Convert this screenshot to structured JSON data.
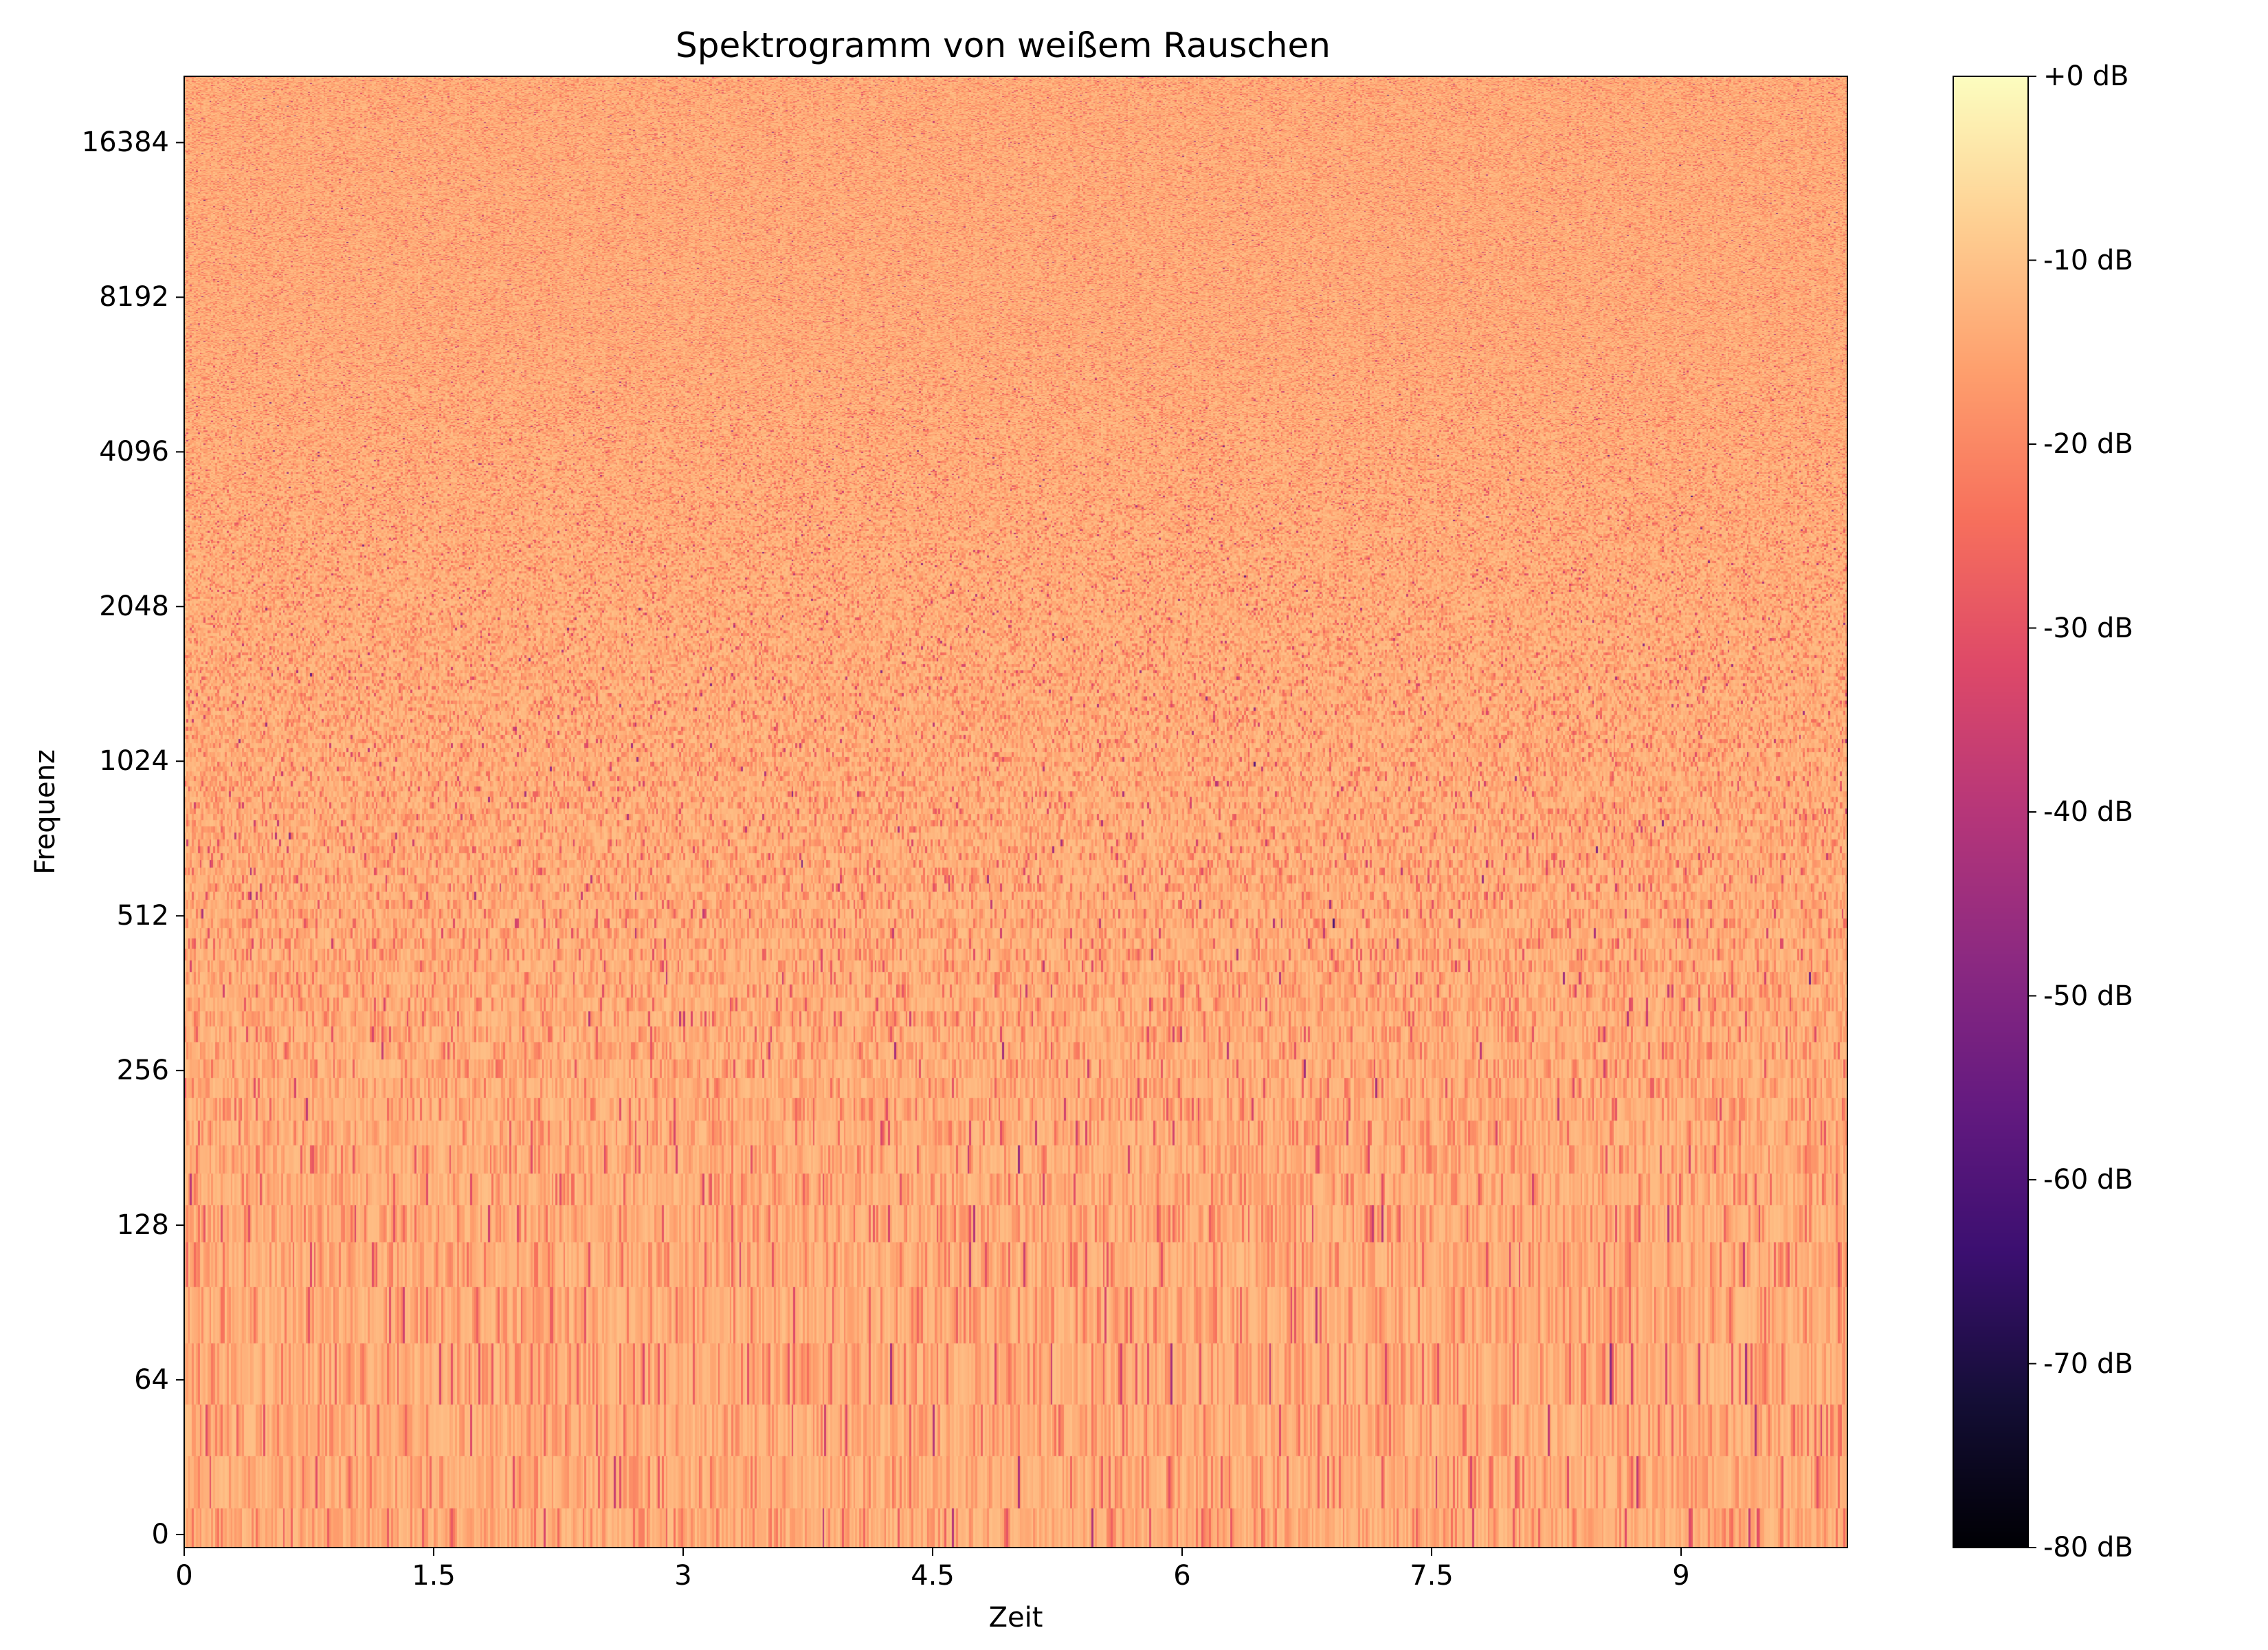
{
  "chart_data": {
    "type": "heatmap",
    "title": "Spektrogramm von weißem Rauschen",
    "xlabel": "Zeit",
    "ylabel": "Frequenz",
    "x_ticks": [
      "0",
      "1.5",
      "3",
      "4.5",
      "6",
      "7.5",
      "9"
    ],
    "x_tick_values": [
      0,
      1.5,
      3,
      4.5,
      6,
      7.5,
      9
    ],
    "xlim": [
      0,
      10
    ],
    "y_scale": "symlog (base 2)",
    "y_ticks": [
      "0",
      "64",
      "128",
      "256",
      "512",
      "1024",
      "2048",
      "4096",
      "8192",
      "16384"
    ],
    "y_tick_values": [
      0,
      64,
      128,
      256,
      512,
      1024,
      2048,
      4096,
      8192,
      16384
    ],
    "ylim": [
      -5.4,
      22050
    ],
    "colormap": "magma",
    "colorbar": {
      "ticks": [
        "+0 dB",
        "-10 dB",
        "-20 dB",
        "-30 dB",
        "-40 dB",
        "-50 dB",
        "-60 dB",
        "-70 dB",
        "-80 dB"
      ],
      "tick_values": [
        0,
        -10,
        -20,
        -30,
        -40,
        -50,
        -60,
        -70,
        -80
      ],
      "range": [
        -80,
        0
      ]
    },
    "typical_level_db": {
      "high_frequencies": -13,
      "low_frequencies": -15,
      "occasional_minimum": -45
    }
  }
}
